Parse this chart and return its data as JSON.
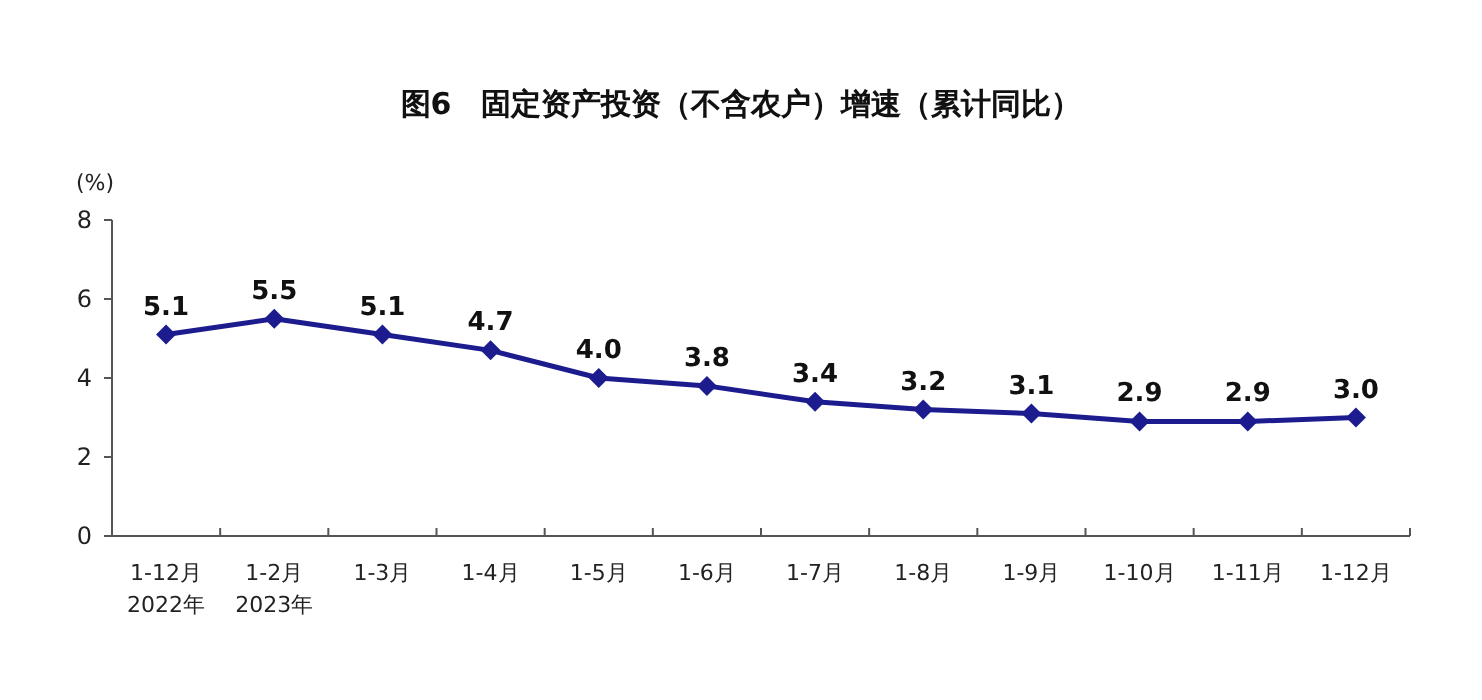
{
  "chart_data": {
    "type": "line",
    "title": "图6　固定资产投资（不含农户）增速（累计同比）",
    "ylabel": "(%)",
    "categories": [
      "1-12月\n2022年",
      "1-2月\n2023年",
      "1-3月",
      "1-4月",
      "1-5月",
      "1-6月",
      "1-7月",
      "1-8月",
      "1-9月",
      "1-10月",
      "1-11月",
      "1-12月"
    ],
    "series": [
      {
        "color": "#1c1c8e",
        "values": [
          5.1,
          5.5,
          5.1,
          4.7,
          4.0,
          3.8,
          3.4,
          3.2,
          3.1,
          2.9,
          2.9,
          3.0
        ],
        "value_labels": [
          "5.1",
          "5.5",
          "5.1",
          "4.7",
          "4.0",
          "3.8",
          "3.4",
          "3.2",
          "3.1",
          "2.9",
          "2.9",
          "3.0"
        ]
      }
    ],
    "ylim": [
      0,
      8
    ],
    "yticks": [
      0,
      2,
      4,
      6,
      8
    ],
    "marker": "diamond",
    "data_labels": true,
    "grid": false
  }
}
